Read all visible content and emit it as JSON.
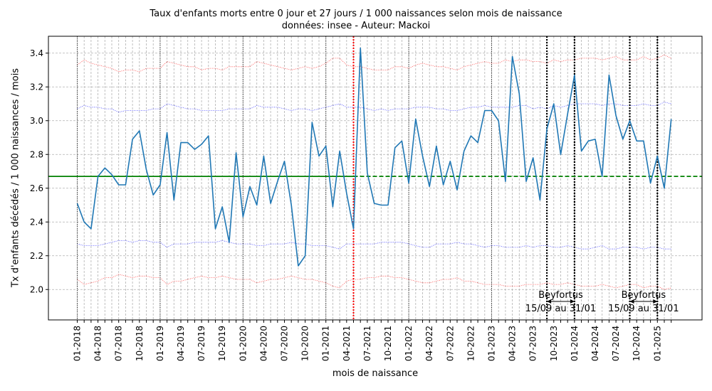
{
  "chart_data": {
    "type": "line",
    "title": "Taux d'enfants morts entre 0 jour et 27 jours / 1 000 naissances selon mois de naissance",
    "subtitle": "données: insee - Auteur: Mackoi",
    "xlabel": "mois de naissance",
    "ylabel": "Tx d'enfants décédés / 1 000 naissances / mois",
    "ylim": [
      1.82,
      3.5
    ],
    "yticks": [
      2.0,
      2.2,
      2.4,
      2.6,
      2.8,
      3.0,
      3.2,
      3.4
    ],
    "xticks": [
      "01-2018",
      "04-2018",
      "07-2018",
      "10-2018",
      "01-2019",
      "04-2019",
      "07-2019",
      "10-2019",
      "01-2020",
      "04-2020",
      "07-2020",
      "10-2020",
      "01-2021",
      "04-2021",
      "07-2021",
      "10-2021",
      "01-2022",
      "04-2022",
      "07-2022",
      "10-2022",
      "01-2023",
      "04-2023",
      "07-2023",
      "10-2023",
      "01-2024",
      "04-2024",
      "07-2024",
      "10-2024",
      "01-2025"
    ],
    "grid": true,
    "series": [
      {
        "color": "#1f77b4",
        "start": "01-2018",
        "values": [
          2.51,
          2.4,
          2.36,
          2.67,
          2.72,
          2.68,
          2.62,
          2.62,
          2.89,
          2.94,
          2.71,
          2.56,
          2.62,
          2.93,
          2.53,
          2.87,
          2.87,
          2.83,
          2.86,
          2.91,
          2.36,
          2.49,
          2.28,
          2.81,
          2.43,
          2.61,
          2.5,
          2.79,
          2.51,
          2.64,
          2.76,
          2.5,
          2.14,
          2.2,
          2.99,
          2.79,
          2.85,
          2.49,
          2.82,
          2.57,
          2.36,
          3.43,
          2.69,
          2.51,
          2.5,
          2.5,
          2.84,
          2.88,
          2.63,
          3.01,
          2.79,
          2.61,
          2.85,
          2.62,
          2.76,
          2.59,
          2.82,
          2.91,
          2.87,
          3.06,
          3.06,
          3.0,
          2.64,
          3.38,
          3.16,
          2.64,
          2.78,
          2.53,
          2.95,
          3.1,
          2.8,
          3.04,
          3.27,
          2.82,
          2.88,
          2.89,
          2.67,
          3.27,
          3.03,
          2.89,
          3.0,
          2.88,
          2.88,
          2.63,
          2.79,
          2.6,
          3.01
        ]
      }
    ],
    "mean_line": {
      "value": 2.67,
      "color": "#008000"
    },
    "bands": [
      {
        "color": "#0000ff",
        "upper": [
          3.07,
          3.09,
          3.08,
          3.08,
          3.07,
          3.07,
          3.05,
          3.06,
          3.06,
          3.06,
          3.06,
          3.07,
          3.07,
          3.1,
          3.09,
          3.08,
          3.07,
          3.07,
          3.06,
          3.06,
          3.06,
          3.06,
          3.07,
          3.07,
          3.07,
          3.07,
          3.09,
          3.08,
          3.08,
          3.08,
          3.07,
          3.06,
          3.07,
          3.07,
          3.06,
          3.07,
          3.08,
          3.09,
          3.1,
          3.08,
          3.08,
          3.08,
          3.07,
          3.06,
          3.07,
          3.06,
          3.07,
          3.07,
          3.07,
          3.08,
          3.08,
          3.08,
          3.07,
          3.07,
          3.06,
          3.06,
          3.07,
          3.08,
          3.08,
          3.09,
          3.08,
          3.08,
          3.08,
          3.08,
          3.09,
          3.09,
          3.07,
          3.08,
          3.07,
          3.09,
          3.08,
          3.09,
          3.1,
          3.1,
          3.1,
          3.1,
          3.09,
          3.1,
          3.1,
          3.09,
          3.09,
          3.09,
          3.1,
          3.09,
          3.09,
          3.11,
          3.1
        ],
        "lower": [
          2.27,
          2.26,
          2.26,
          2.26,
          2.27,
          2.28,
          2.29,
          2.29,
          2.28,
          2.29,
          2.29,
          2.28,
          2.28,
          2.25,
          2.27,
          2.27,
          2.27,
          2.28,
          2.28,
          2.28,
          2.28,
          2.29,
          2.28,
          2.27,
          2.27,
          2.27,
          2.26,
          2.26,
          2.27,
          2.27,
          2.27,
          2.28,
          2.27,
          2.27,
          2.26,
          2.26,
          2.26,
          2.25,
          2.24,
          2.27,
          2.27,
          2.27,
          2.27,
          2.27,
          2.28,
          2.28,
          2.28,
          2.28,
          2.27,
          2.26,
          2.25,
          2.25,
          2.27,
          2.27,
          2.27,
          2.28,
          2.27,
          2.27,
          2.26,
          2.25,
          2.26,
          2.26,
          2.25,
          2.25,
          2.25,
          2.26,
          2.25,
          2.26,
          2.26,
          2.25,
          2.25,
          2.26,
          2.25,
          2.24,
          2.24,
          2.25,
          2.26,
          2.24,
          2.24,
          2.25,
          2.25,
          2.25,
          2.24,
          2.25,
          2.25,
          2.24,
          2.24
        ]
      },
      {
        "color": "#ff0000",
        "upper": [
          3.33,
          3.36,
          3.34,
          3.33,
          3.32,
          3.31,
          3.29,
          3.3,
          3.3,
          3.29,
          3.31,
          3.31,
          3.31,
          3.35,
          3.34,
          3.33,
          3.32,
          3.32,
          3.3,
          3.31,
          3.31,
          3.3,
          3.32,
          3.32,
          3.32,
          3.32,
          3.35,
          3.34,
          3.33,
          3.32,
          3.31,
          3.3,
          3.31,
          3.32,
          3.31,
          3.32,
          3.34,
          3.37,
          3.37,
          3.33,
          3.32,
          3.32,
          3.31,
          3.3,
          3.3,
          3.3,
          3.32,
          3.32,
          3.31,
          3.33,
          3.34,
          3.33,
          3.32,
          3.32,
          3.31,
          3.3,
          3.32,
          3.33,
          3.34,
          3.35,
          3.34,
          3.34,
          3.36,
          3.35,
          3.36,
          3.36,
          3.35,
          3.35,
          3.34,
          3.36,
          3.35,
          3.36,
          3.36,
          3.37,
          3.37,
          3.37,
          3.36,
          3.37,
          3.38,
          3.36,
          3.36,
          3.36,
          3.38,
          3.36,
          3.37,
          3.39,
          3.37
        ],
        "lower": [
          2.06,
          2.03,
          2.04,
          2.05,
          2.07,
          2.07,
          2.09,
          2.08,
          2.07,
          2.08,
          2.08,
          2.07,
          2.07,
          2.03,
          2.05,
          2.05,
          2.06,
          2.07,
          2.08,
          2.07,
          2.07,
          2.08,
          2.07,
          2.06,
          2.06,
          2.06,
          2.04,
          2.05,
          2.06,
          2.06,
          2.07,
          2.08,
          2.07,
          2.06,
          2.06,
          2.05,
          2.04,
          2.02,
          2.01,
          2.05,
          2.06,
          2.06,
          2.07,
          2.07,
          2.08,
          2.08,
          2.07,
          2.07,
          2.06,
          2.05,
          2.04,
          2.04,
          2.05,
          2.06,
          2.06,
          2.07,
          2.05,
          2.05,
          2.04,
          2.03,
          2.03,
          2.03,
          2.02,
          2.02,
          2.02,
          2.03,
          2.03,
          2.03,
          2.04,
          2.03,
          2.03,
          2.04,
          2.03,
          2.02,
          2.02,
          2.02,
          2.03,
          2.02,
          2.01,
          2.02,
          2.03,
          2.03,
          2.01,
          2.02,
          2.02,
          2.0,
          2.01
        ]
      }
    ],
    "year_markers": [
      "01-2018",
      "01-2019",
      "01-2020",
      "01-2021",
      "01-2022",
      "01-2023",
      "01-2024",
      "01-2025"
    ],
    "red_marker": {
      "at": "05-2021",
      "color": "#ff0000"
    },
    "beyfortus_markers": [
      {
        "start": "09-2023",
        "end": "01-2024",
        "label": "Beyfortus",
        "sublabel": "15/09 au 31/01"
      },
      {
        "start": "09-2024",
        "end": "01-2025",
        "label": "Beyfortus",
        "sublabel": "15/09 au 31/01"
      }
    ]
  }
}
